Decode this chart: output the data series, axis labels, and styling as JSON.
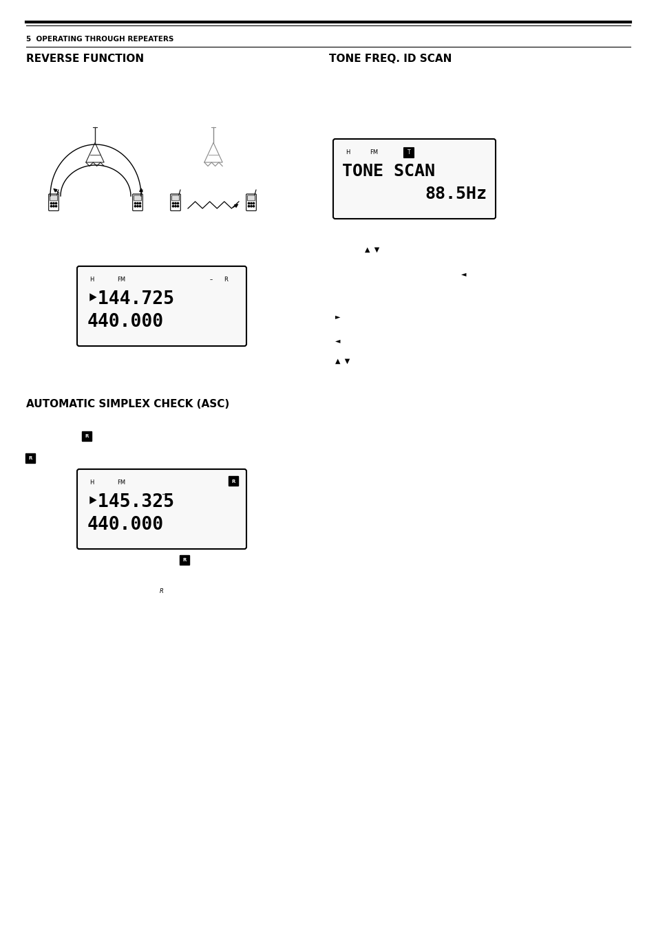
{
  "bg_color": "#ffffff",
  "page_width": 9.54,
  "page_height": 13.49,
  "section_label": "5  OPERATING THROUGH REPEATERS",
  "left_heading": "REVERSE FUNCTION",
  "right_heading": "TONE FREQ. ID SCAN",
  "asc_heading": "AUTOMATIC SIMPLEX CHECK (ASC)",
  "lcd1_line1": "‣144.725",
  "lcd1_line2": "440.000",
  "lcd1_dash": "–",
  "lcd2_line1": "TONE SCAN",
  "lcd2_line2": "88.5Hz",
  "lcd3_line1": "‣145.325",
  "lcd3_line2": "440.000"
}
